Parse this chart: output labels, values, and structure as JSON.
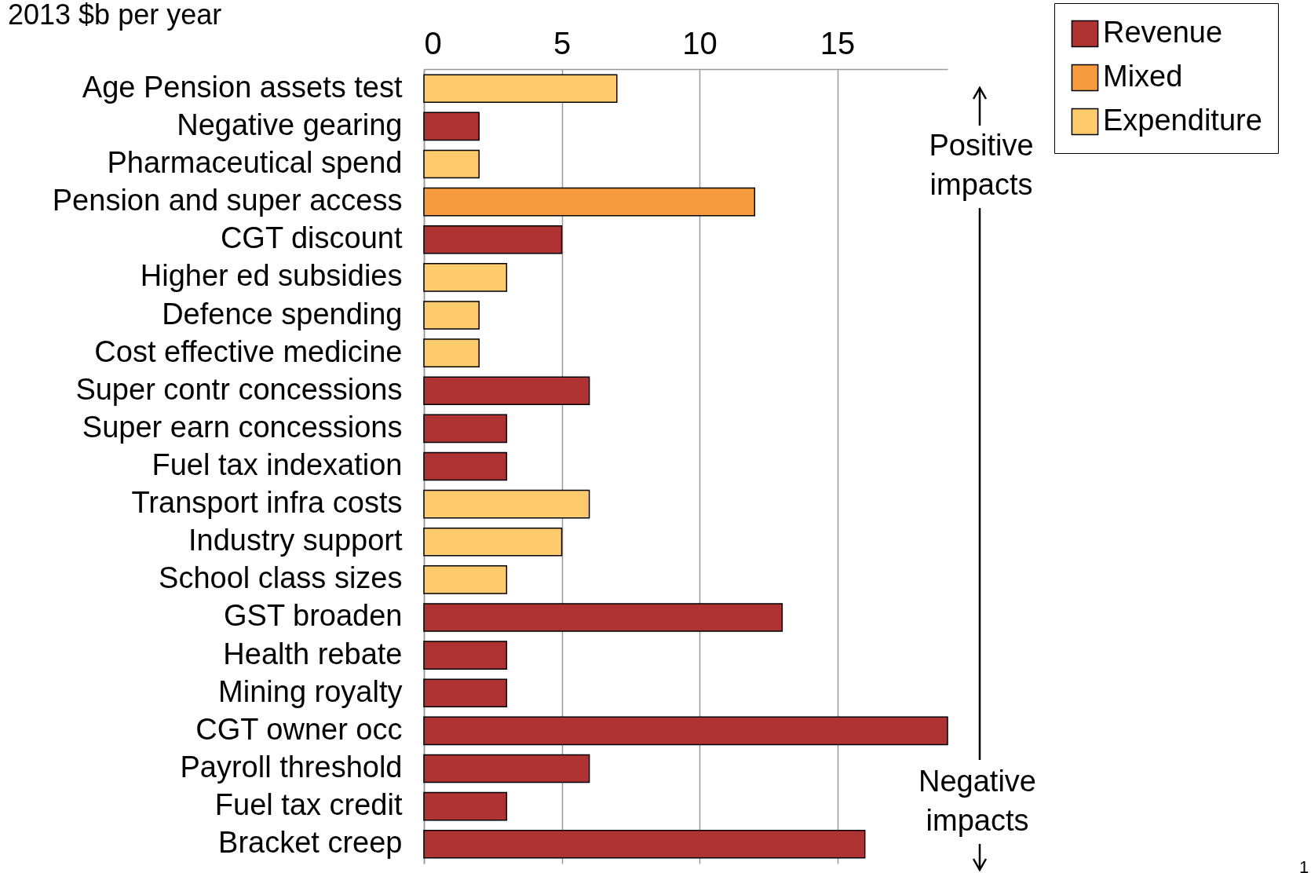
{
  "chart_data": {
    "type": "bar",
    "orientation": "horizontal",
    "title": "2013 $b per year",
    "categories": [
      "Age Pension assets test",
      "Negative gearing",
      "Pharmaceutical spend",
      "Pension and super access",
      "CGT discount",
      "Higher ed subsidies",
      "Defence spending",
      "Cost effective medicine",
      "Super contr concessions",
      "Super earn concessions",
      "Fuel tax indexation",
      "Transport infra costs",
      "Industry support",
      "School class sizes",
      "GST broaden",
      "Health rebate",
      "Mining royalty",
      "CGT owner occ",
      "Payroll threshold",
      "Fuel tax credit",
      "Bracket creep"
    ],
    "series": [
      {
        "name": "Revenue",
        "color": "#b03333",
        "values": [
          null,
          2,
          null,
          null,
          5,
          null,
          null,
          null,
          6,
          3,
          3,
          null,
          null,
          null,
          13,
          3,
          3,
          19,
          6,
          3,
          16
        ]
      },
      {
        "name": "Mixed",
        "color": "#f79c3e",
        "values": [
          null,
          null,
          null,
          12,
          null,
          null,
          null,
          null,
          null,
          null,
          null,
          null,
          null,
          null,
          null,
          null,
          null,
          null,
          null,
          null,
          null
        ]
      },
      {
        "name": "Expenditure",
        "color": "#fdca6c",
        "values": [
          7,
          null,
          2,
          null,
          null,
          3,
          2,
          2,
          null,
          null,
          null,
          6,
          5,
          3,
          null,
          null,
          null,
          null,
          null,
          null,
          null
        ]
      }
    ],
    "xlim": [
      0,
      19
    ],
    "xticks": [
      0,
      5,
      10,
      15
    ],
    "grid": "x",
    "legend": "top right",
    "annotations": [
      "Positive impacts",
      "Negative impacts",
      "1"
    ]
  }
}
